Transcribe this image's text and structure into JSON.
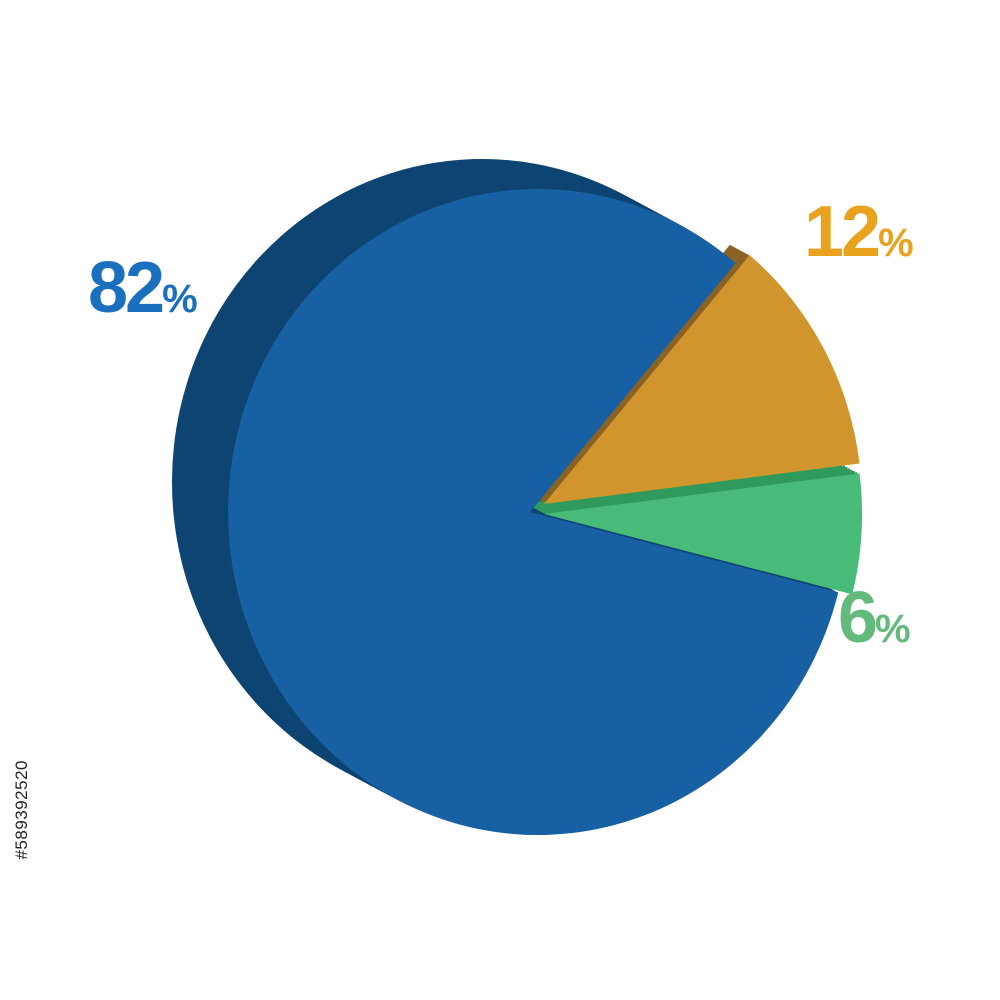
{
  "chart_data": {
    "type": "pie",
    "style": "3d",
    "slices": [
      {
        "label": "82%",
        "value": 82,
        "color": "#1660a3",
        "side_color": "#0d4472"
      },
      {
        "label": "12%",
        "value": 12,
        "color": "#d0952c",
        "side_color": "#8a6224",
        "label_color": "#e8a21e"
      },
      {
        "label": "6%",
        "value": 6,
        "color": "#48bb78",
        "side_color": "#2f9a5c",
        "label_color": "#62bb7c"
      }
    ],
    "label_colors": {
      "blue": "#1a6fbf",
      "orange": "#e8a21e",
      "green": "#62bb7c"
    }
  },
  "watermark": {
    "id": "#589392520"
  }
}
